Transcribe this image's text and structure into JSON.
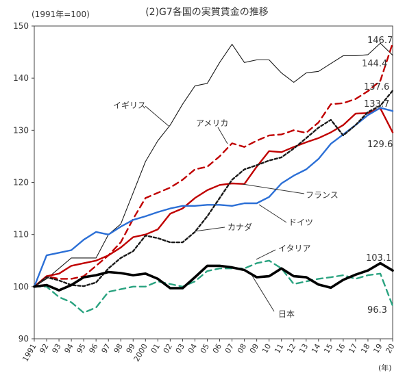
{
  "chart_data": {
    "type": "line",
    "title": "(2)G7各国の実質賃金の推移",
    "ylabel": "(1991年=100)",
    "xlabel": "(年)",
    "ylim": [
      90,
      150
    ],
    "yticks": [
      90,
      100,
      110,
      120,
      130,
      140,
      150
    ],
    "x": [
      1991,
      1992,
      1993,
      1994,
      1995,
      1996,
      1997,
      1998,
      1999,
      2000,
      2001,
      2002,
      2003,
      2004,
      2005,
      2006,
      2007,
      2008,
      2009,
      2010,
      2011,
      2012,
      2013,
      2014,
      2015,
      2016,
      2017,
      2018,
      2019,
      2020
    ],
    "xtick_labels": [
      "1991",
      "92",
      "93",
      "94",
      "95",
      "96",
      "97",
      "98",
      "99",
      "2000",
      "01",
      "02",
      "03",
      "04",
      "05",
      "06",
      "07",
      "08",
      "09",
      "10",
      "11",
      "12",
      "13",
      "14",
      "15",
      "16",
      "17",
      "18",
      "19",
      "20"
    ],
    "series": [
      {
        "name": "イギリス",
        "color": "#1a1a1a",
        "style": "solid-thin",
        "values": [
          100,
          101.5,
          103.5,
          105.5,
          105.5,
          105.5,
          110,
          112,
          118,
          124,
          128,
          131,
          135,
          138.5,
          139,
          143,
          146.5,
          143,
          143.5,
          143.5,
          141,
          139.2,
          141,
          141.3,
          142.8,
          144.3,
          144.3,
          144.5,
          146.7,
          144.4
        ]
      },
      {
        "name": "アメリカ",
        "color": "#c00000",
        "style": "dashed",
        "values": [
          100,
          102,
          101.5,
          101.5,
          102,
          104,
          106,
          108.5,
          113,
          117,
          118,
          119,
          120.5,
          122.5,
          123,
          125,
          127.5,
          126.8,
          128,
          129,
          129.2,
          130,
          129.5,
          131.5,
          135,
          135.2,
          136,
          137.5,
          139.5,
          146.7
        ]
      },
      {
        "name": "フランス",
        "color": "#c00000",
        "style": "solid",
        "values": [
          100,
          102,
          102.5,
          104,
          104.5,
          105,
          106,
          107.5,
          109.5,
          110,
          111,
          114,
          115,
          117,
          118.5,
          119.5,
          119.8,
          119.7,
          123,
          126,
          125.8,
          126.8,
          127.7,
          128.5,
          129.6,
          131,
          133.2,
          133.3,
          134.2,
          129.6
        ]
      },
      {
        "name": "ドイツ",
        "color": "#2b6fd6",
        "style": "solid",
        "values": [
          100,
          106,
          106.5,
          107,
          109,
          110.5,
          110,
          111.5,
          112.8,
          113.5,
          114.3,
          115,
          115.5,
          115.5,
          115.7,
          115.7,
          115.5,
          116,
          116,
          117.2,
          119.8,
          121.3,
          122.5,
          124.5,
          127.4,
          129.2,
          131,
          132.9,
          134.3,
          133.7
        ]
      },
      {
        "name": "カナダ",
        "color": "#1a1a1a",
        "style": "dotted",
        "values": [
          100,
          101.8,
          101.2,
          100.3,
          100.1,
          100.8,
          103.5,
          105.5,
          106.8,
          109.8,
          109.3,
          108.5,
          108.5,
          110.5,
          113.5,
          117,
          120.5,
          122.5,
          123.3,
          124.2,
          124.8,
          126.5,
          128.5,
          130.5,
          132,
          129,
          131,
          133.5,
          134.7,
          137.6
        ]
      },
      {
        "name": "イタリア",
        "color": "#2aa380",
        "style": "dashed",
        "values": [
          100,
          100,
          98,
          97,
          95,
          96,
          99,
          99.5,
          100,
          100,
          101,
          100.5,
          100,
          101,
          103,
          103.5,
          103.5,
          103.5,
          104.5,
          105,
          103.5,
          100.5,
          101,
          101.5,
          101.8,
          102.2,
          101.5,
          102.2,
          102.5,
          96.3
        ]
      },
      {
        "name": "日本",
        "color": "#000000",
        "style": "thick",
        "values": [
          100,
          100.3,
          99.3,
          100.3,
          101.8,
          102.2,
          102.8,
          102.6,
          102.2,
          102.5,
          101.5,
          99.7,
          99.7,
          101.8,
          104,
          104,
          103.7,
          103.2,
          101.8,
          102,
          103.5,
          102,
          101.8,
          100.4,
          99.8,
          101.3,
          102.3,
          103.1,
          104.5,
          103.1
        ]
      }
    ],
    "annotations": [
      "146.7",
      "144.4",
      "137.6",
      "133.7",
      "129.6",
      "103.1",
      "96.3"
    ]
  }
}
